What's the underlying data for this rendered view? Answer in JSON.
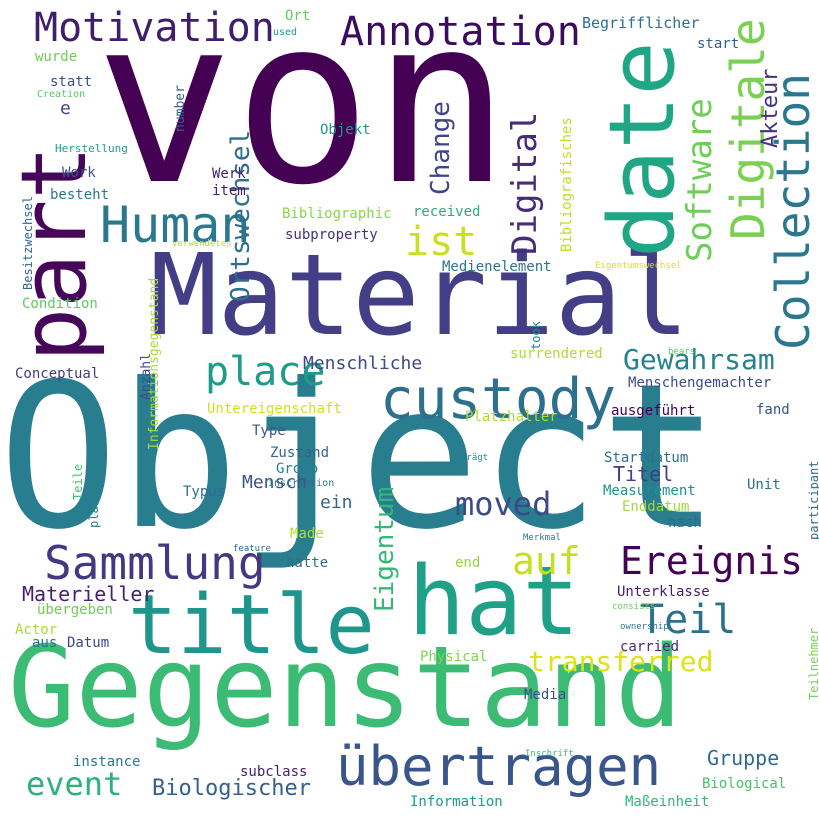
{
  "words": [
    {
      "text": "von",
      "color": "#440154",
      "vertical": false
    },
    {
      "text": "Object",
      "color": "#287d8e",
      "vertical": false
    },
    {
      "text": "Material",
      "color": "#433e85",
      "vertical": false
    },
    {
      "text": "Gegenstand",
      "color": "#3cbb75",
      "vertical": false
    },
    {
      "text": "part",
      "color": "#46075a",
      "vertical": true
    },
    {
      "text": "date",
      "color": "#21a685",
      "vertical": true
    },
    {
      "text": "title",
      "color": "#1f968b",
      "vertical": false
    },
    {
      "text": "hat",
      "color": "#1fa187",
      "vertical": false
    },
    {
      "text": "custody",
      "color": "#2d708e",
      "vertical": false
    },
    {
      "text": "übertragen",
      "color": "#39568c",
      "vertical": false
    },
    {
      "text": "Sammlung",
      "color": "#453781",
      "vertical": false
    },
    {
      "text": "Motivation",
      "color": "#3f1e6c",
      "vertical": false
    },
    {
      "text": "Annotation",
      "color": "#3a0b5e",
      "vertical": false
    },
    {
      "text": "Human",
      "color": "#2a788e",
      "vertical": false
    },
    {
      "text": "Collection",
      "color": "#2a778e",
      "vertical": true
    },
    {
      "text": "Digitale",
      "color": "#7ad151",
      "vertical": true
    },
    {
      "text": "Software",
      "color": "#6ece58",
      "vertical": true
    },
    {
      "text": "Digital",
      "color": "#472c7a",
      "vertical": true
    },
    {
      "text": "ist",
      "color": "#c8e020",
      "vertical": false
    },
    {
      "text": "place",
      "color": "#1e9c89",
      "vertical": false
    },
    {
      "text": "Teil",
      "color": "#2c728e",
      "vertical": false
    },
    {
      "text": "auf",
      "color": "#c5e021",
      "vertical": false
    },
    {
      "text": "Ereignis",
      "color": "#440256",
      "vertical": false
    },
    {
      "text": "Gewahrsam",
      "color": "#26828e",
      "vertical": false
    },
    {
      "text": "Eigentum",
      "color": "#35b779",
      "vertical": true
    },
    {
      "text": "Ortswechsel",
      "color": "#2e6e8e",
      "vertical": true
    },
    {
      "text": "Change",
      "color": "#414487",
      "vertical": true
    },
    {
      "text": "moved",
      "color": "#3e4989",
      "vertical": false
    },
    {
      "text": "transferred",
      "color": "#dde318",
      "vertical": false
    },
    {
      "text": "event",
      "color": "#2db27d",
      "vertical": false
    },
    {
      "text": "Biologischer",
      "color": "#355f8d",
      "vertical": false
    },
    {
      "text": "Akteur",
      "color": "#46327e",
      "vertical": true
    },
    {
      "text": "Menschliche",
      "color": "#3e4a89",
      "vertical": false
    },
    {
      "text": "Mensch",
      "color": "#3b528b",
      "vertical": false
    },
    {
      "text": "Titel",
      "color": "#433d84",
      "vertical": false
    },
    {
      "text": "Materieller",
      "color": "#481f70",
      "vertical": false
    },
    {
      "text": "Gruppe",
      "color": "#2f6b8e",
      "vertical": false
    },
    {
      "text": "ein",
      "color": "#306a8e",
      "vertical": false
    },
    {
      "text": "Bibliografisches",
      "color": "#bddf26",
      "vertical": true
    },
    {
      "text": "Begrifflicher",
      "color": "#2c718e",
      "vertical": false
    },
    {
      "text": "start",
      "color": "#34618d",
      "vertical": false
    },
    {
      "text": "Ort",
      "color": "#63cb5f",
      "vertical": false
    },
    {
      "text": "used",
      "color": "#1e9b8a",
      "vertical": false
    },
    {
      "text": "wurde",
      "color": "#6ccd5a",
      "vertical": false
    },
    {
      "text": "statt",
      "color": "#3a548c",
      "vertical": false
    },
    {
      "text": "Creation",
      "color": "#54c568",
      "vertical": false
    },
    {
      "text": "e",
      "color": "#404688",
      "vertical": false
    },
    {
      "text": "number",
      "color": "#34608d",
      "vertical": true
    },
    {
      "text": "Objekt",
      "color": "#1f988b",
      "vertical": false
    },
    {
      "text": "Herstellung",
      "color": "#1f9e89",
      "vertical": false
    },
    {
      "text": "Work",
      "color": "#3b518b",
      "vertical": false
    },
    {
      "text": "Werk",
      "color": "#482374",
      "vertical": false
    },
    {
      "text": "besteht",
      "color": "#2a788e",
      "vertical": false
    },
    {
      "text": "item",
      "color": "#481b6d",
      "vertical": false
    },
    {
      "text": "Besitzwechsel",
      "color": "#31668e",
      "vertical": true
    },
    {
      "text": "Bibliographic",
      "color": "#8bd646",
      "vertical": false
    },
    {
      "text": "received",
      "color": "#26ad81",
      "vertical": false
    },
    {
      "text": "subproperty",
      "color": "#46307e",
      "vertical": false
    },
    {
      "text": "verwendetes",
      "color": "#b5de2b",
      "vertical": false
    },
    {
      "text": "Informationsgegenstand",
      "color": "#a8db34",
      "vertical": true
    },
    {
      "text": "Medienelement",
      "color": "#2b758e",
      "vertical": false
    },
    {
      "text": "Eigentumswechsel",
      "color": "#d8e219",
      "vertical": false
    },
    {
      "text": "Condition",
      "color": "#5ec962",
      "vertical": false
    },
    {
      "text": "took",
      "color": "#25848e",
      "vertical": true
    },
    {
      "text": "bears",
      "color": "#5dc863",
      "vertical": false
    },
    {
      "text": "surrendered",
      "color": "#b0dd2f",
      "vertical": false
    },
    {
      "text": "Menschengemachter",
      "color": "#3e4c8a",
      "vertical": false
    },
    {
      "text": "Conceptual",
      "color": "#433d84",
      "vertical": false
    },
    {
      "text": "Anzahl",
      "color": "#3e4a89",
      "vertical": true
    },
    {
      "text": "Untereigenschaft",
      "color": "#d2e21b",
      "vertical": false
    },
    {
      "text": "Platzhalter",
      "color": "#addc30",
      "vertical": false
    },
    {
      "text": "ausgeführt",
      "color": "#440154",
      "vertical": false
    },
    {
      "text": "fand",
      "color": "#3b518b",
      "vertical": false
    },
    {
      "text": "Type",
      "color": "#38588c",
      "vertical": false
    },
    {
      "text": "Zustand",
      "color": "#32658e",
      "vertical": false
    },
    {
      "text": "Group",
      "color": "#277f8e",
      "vertical": false
    },
    {
      "text": "participant",
      "color": "#2e6d8e",
      "vertical": true
    },
    {
      "text": "Teile",
      "color": "#4ac16d",
      "vertical": true
    },
    {
      "text": "placeholder",
      "color": "#27808e",
      "vertical": true
    },
    {
      "text": "trägt",
      "color": "#23888e",
      "vertical": false
    },
    {
      "text": "Startdatum",
      "color": "#2c728e",
      "vertical": false
    },
    {
      "text": "inscription",
      "color": "#2c728e",
      "vertical": false
    },
    {
      "text": "Typus",
      "color": "#2e6e8e",
      "vertical": false
    },
    {
      "text": "Measurement",
      "color": "#20928c",
      "vertical": false
    },
    {
      "text": "Unit",
      "color": "#2c718e",
      "vertical": false
    },
    {
      "text": "Enddatum",
      "color": "#a2da37",
      "vertical": false
    },
    {
      "text": "Made",
      "color": "#aadc32",
      "vertical": false
    },
    {
      "text": "nach",
      "color": "#2f6b8e",
      "vertical": false
    },
    {
      "text": "Merkmal",
      "color": "#287c8e",
      "vertical": false
    },
    {
      "text": "feature",
      "color": "#31678e",
      "vertical": false
    },
    {
      "text": "hatte",
      "color": "#2d708e",
      "vertical": false
    },
    {
      "text": "end",
      "color": "#94d840",
      "vertical": false
    },
    {
      "text": "Unterklasse",
      "color": "#481a6c",
      "vertical": false
    },
    {
      "text": "consists",
      "color": "#6ccd5a",
      "vertical": false
    },
    {
      "text": "übergeben",
      "color": "#6ccd5a",
      "vertical": false
    },
    {
      "text": "Actor",
      "color": "#a8db34",
      "vertical": false
    },
    {
      "text": "ownership",
      "color": "#2a788e",
      "vertical": false
    },
    {
      "text": "Teilnehmer",
      "color": "#7ad151",
      "vertical": true
    },
    {
      "text": "aus",
      "color": "#2d708e",
      "vertical": false
    },
    {
      "text": "Datum",
      "color": "#3f4788",
      "vertical": false
    },
    {
      "text": "carried",
      "color": "#482878",
      "vertical": false
    },
    {
      "text": "Physical",
      "color": "#7fd34e",
      "vertical": false
    },
    {
      "text": "Media",
      "color": "#3d4d8a",
      "vertical": false
    },
    {
      "text": "instance",
      "color": "#2a788e",
      "vertical": false
    },
    {
      "text": "Inschrift",
      "color": "#3bbb75",
      "vertical": false
    },
    {
      "text": "subclass",
      "color": "#482071",
      "vertical": false
    },
    {
      "text": "Biological",
      "color": "#4ac16d",
      "vertical": false
    },
    {
      "text": "Information",
      "color": "#1f9a8a",
      "vertical": false
    },
    {
      "text": "Maßeinheit",
      "color": "#32b67a",
      "vertical": false
    }
  ]
}
